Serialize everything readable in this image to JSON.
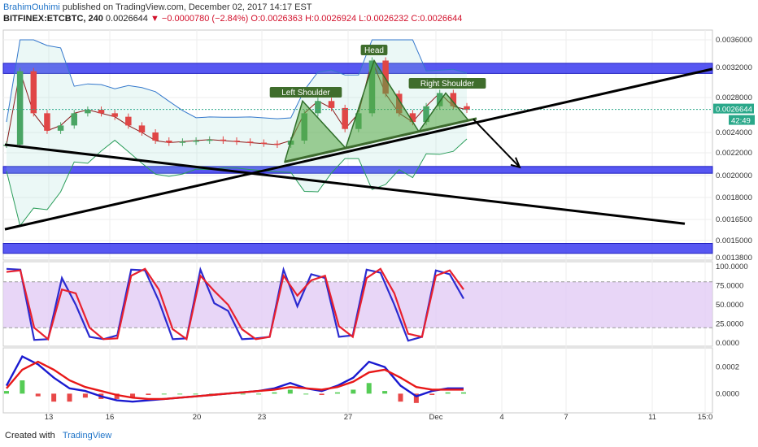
{
  "header": {
    "author": "BrahimOuhimi",
    "published": "published on TradingView.com, December 02, 2017 14:17 EST",
    "symbol": "BITFINEX:ETCBTC, 240",
    "last": "0.0026644",
    "change": "▼ −0.0000780 (−2.84%)",
    "ohlc": "O:0.0026363 H:0.0026924 L:0.0026232 C:0.0026644"
  },
  "footer": {
    "created_with": "Created with",
    "brand": "TradingView"
  },
  "colors": {
    "zone": "#3a3af0",
    "up": "#4aa564",
    "down": "#e04646",
    "pattern": "#56a844",
    "stoch_k": "#2b2bd0",
    "stoch_d": "#e8202e",
    "stoch_band": "#e2ccf5"
  },
  "chart_data": [
    {
      "type": "line",
      "panel": "price",
      "x_ticks": [
        "13",
        "16",
        "20",
        "23",
        "27",
        "Dec",
        "4",
        "7",
        "11",
        "15:0"
      ],
      "y_ticks": [
        "0.0036000",
        "0.0032000",
        "0.0028000",
        "0.0024000",
        "0.0022000",
        "0.0020000",
        "0.0018000",
        "0.0016500",
        "0.0015000",
        "0.0013800"
      ],
      "ylim": [
        0.00138,
        0.0036
      ],
      "last_price_label": "0.0026644",
      "countdown_label": "42:49",
      "annotations": [
        "Head",
        "Left Shoulder",
        "Right Shoulder"
      ],
      "close_series": [
        0.00228,
        0.00315,
        0.00262,
        0.00242,
        0.00248,
        0.00262,
        0.00266,
        0.00262,
        0.00258,
        0.00248,
        0.0024,
        0.00232,
        0.0023,
        0.00231,
        0.00232,
        0.00233,
        0.00232,
        0.00231,
        0.0023,
        0.00229,
        0.00228,
        0.00232,
        0.00262,
        0.00276,
        0.00268,
        0.00244,
        0.00262,
        0.0033,
        0.00285,
        0.00262,
        0.00252,
        0.0027,
        0.00286,
        0.0027,
        0.00266
      ],
      "support_zones": [
        [
          0.00312,
          0.00326
        ],
        [
          0.00202,
          0.00208
        ],
        [
          0.00141,
          0.00148
        ]
      ],
      "head_and_shoulders": {
        "left_shoulder": 0.00276,
        "head": 0.0033,
        "right_shoulder": 0.00286,
        "neckline_start": 0.00212,
        "neckline_end": 0.00256
      },
      "trendlines": [
        {
          "name": "rising",
          "from": 0.00158,
          "to": 0.00318
        },
        {
          "name": "falling",
          "from": 0.00228,
          "to": 0.00162
        }
      ],
      "projected_target": 0.00208
    },
    {
      "type": "line",
      "panel": "stochastic",
      "y_ticks": [
        "100.0000",
        "75.0000",
        "50.0000",
        "25.0000",
        "0.0000"
      ],
      "ylim": [
        0,
        100
      ],
      "bands": [
        20,
        80
      ],
      "series": [
        {
          "name": "",
          "values": [
            97,
            96,
            4,
            5,
            85,
            50,
            8,
            5,
            10,
            96,
            95,
            55,
            5,
            6,
            96,
            52,
            42,
            5,
            6,
            8,
            96,
            48,
            90,
            85,
            8,
            10,
            96,
            92,
            50,
            3,
            8,
            95,
            90,
            58
          ]
        },
        {
          "name": "",
          "values": [
            93,
            95,
            20,
            5,
            70,
            65,
            20,
            5,
            6,
            88,
            97,
            70,
            18,
            5,
            88,
            68,
            50,
            18,
            5,
            8,
            88,
            62,
            82,
            88,
            22,
            8,
            85,
            97,
            65,
            12,
            8,
            88,
            95,
            70
          ]
        }
      ]
    },
    {
      "type": "line",
      "panel": "macd",
      "y_ticks": [
        "0.0002",
        "0.0000"
      ],
      "ylim": [
        -0.00012,
        0.00032
      ],
      "series": [
        {
          "name": "",
          "values": [
            6e-05,
            0.00028,
            0.00022,
            0.00012,
            4e-05,
            2e-05,
            -2e-05,
            -5e-05,
            -6e-05,
            -5e-05,
            -4e-05,
            -3e-05,
            -2e-05,
            -1e-05,
            0,
            1e-05,
            2e-05,
            4e-05,
            8e-05,
            4e-05,
            2e-05,
            6e-05,
            0.00012,
            0.00024,
            0.0002,
            6e-05,
            -2e-05,
            2e-05,
            4e-05,
            4e-05
          ]
        },
        {
          "name": "",
          "values": [
            4e-05,
            0.00018,
            0.00024,
            0.00018,
            0.0001,
            5e-05,
            2e-05,
            -1e-05,
            -3e-05,
            -4e-05,
            -4e-05,
            -3e-05,
            -2e-05,
            -1e-05,
            0,
            1e-05,
            2e-05,
            3e-05,
            5e-05,
            4e-05,
            3e-05,
            5e-05,
            9e-05,
            0.00016,
            0.00018,
            0.00012,
            5e-05,
            3e-05,
            3e-05,
            3e-05
          ]
        }
      ]
    }
  ]
}
